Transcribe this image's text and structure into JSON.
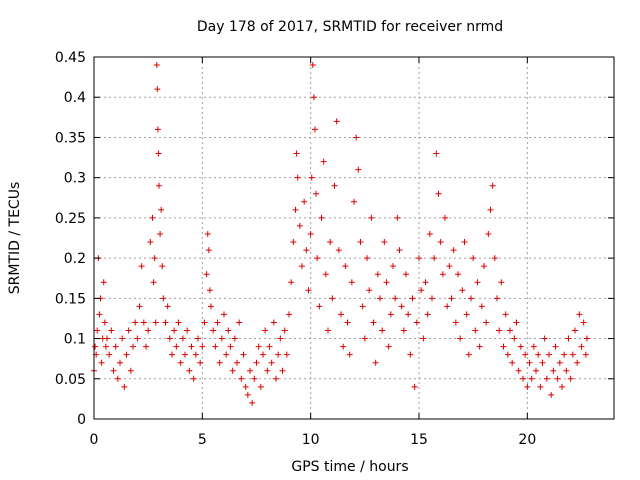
{
  "chart_data": {
    "type": "scatter",
    "title": "Day 178 of 2017, SRMTID for receiver nrmd",
    "xlabel": "GPS time / hours",
    "ylabel": "SRMTID / TECUs",
    "xlim": [
      0,
      24
    ],
    "ylim": [
      0,
      0.45
    ],
    "x_ticks": [
      0,
      5,
      10,
      15,
      20
    ],
    "y_ticks": [
      0,
      0.05,
      0.1,
      0.15,
      0.2,
      0.25,
      0.3,
      0.35,
      0.4,
      0.45
    ],
    "x_tick_labels": [
      "0",
      "5",
      "10",
      "15",
      "20"
    ],
    "y_tick_labels": [
      "0",
      "0.05",
      "0.1",
      "0.15",
      "0.2",
      "0.25",
      "0.3",
      "0.35",
      "0.4",
      "0.45"
    ],
    "grid": true,
    "series": [
      {
        "name": "SRMTID",
        "color": "#e00000",
        "marker": "plus",
        "points": [
          [
            0.0,
            0.06
          ],
          [
            0.05,
            0.09
          ],
          [
            0.1,
            0.08
          ],
          [
            0.15,
            0.11
          ],
          [
            0.2,
            0.2
          ],
          [
            0.25,
            0.13
          ],
          [
            0.3,
            0.15
          ],
          [
            0.35,
            0.07
          ],
          [
            0.4,
            0.1
          ],
          [
            0.45,
            0.17
          ],
          [
            0.5,
            0.12
          ],
          [
            0.55,
            0.09
          ],
          [
            0.6,
            0.1
          ],
          [
            0.7,
            0.08
          ],
          [
            0.8,
            0.11
          ],
          [
            0.9,
            0.06
          ],
          [
            1.0,
            0.09
          ],
          [
            1.1,
            0.05
          ],
          [
            1.2,
            0.07
          ],
          [
            1.3,
            0.1
          ],
          [
            1.4,
            0.04
          ],
          [
            1.5,
            0.08
          ],
          [
            1.6,
            0.11
          ],
          [
            1.7,
            0.06
          ],
          [
            1.8,
            0.09
          ],
          [
            1.9,
            0.12
          ],
          [
            2.0,
            0.1
          ],
          [
            2.1,
            0.14
          ],
          [
            2.2,
            0.19
          ],
          [
            2.3,
            0.12
          ],
          [
            2.4,
            0.09
          ],
          [
            2.5,
            0.11
          ],
          [
            2.6,
            0.22
          ],
          [
            2.7,
            0.25
          ],
          [
            2.75,
            0.17
          ],
          [
            2.8,
            0.2
          ],
          [
            2.85,
            0.12
          ],
          [
            2.9,
            0.44
          ],
          [
            2.92,
            0.41
          ],
          [
            2.95,
            0.36
          ],
          [
            2.98,
            0.33
          ],
          [
            3.0,
            0.29
          ],
          [
            3.05,
            0.23
          ],
          [
            3.1,
            0.26
          ],
          [
            3.15,
            0.19
          ],
          [
            3.2,
            0.15
          ],
          [
            3.3,
            0.12
          ],
          [
            3.4,
            0.14
          ],
          [
            3.5,
            0.1
          ],
          [
            3.6,
            0.08
          ],
          [
            3.7,
            0.11
          ],
          [
            3.8,
            0.09
          ],
          [
            3.9,
            0.12
          ],
          [
            4.0,
            0.07
          ],
          [
            4.1,
            0.1
          ],
          [
            4.2,
            0.08
          ],
          [
            4.3,
            0.11
          ],
          [
            4.4,
            0.06
          ],
          [
            4.5,
            0.09
          ],
          [
            4.6,
            0.05
          ],
          [
            4.7,
            0.08
          ],
          [
            4.8,
            0.1
          ],
          [
            4.9,
            0.07
          ],
          [
            5.0,
            0.09
          ],
          [
            5.1,
            0.12
          ],
          [
            5.2,
            0.18
          ],
          [
            5.25,
            0.23
          ],
          [
            5.3,
            0.21
          ],
          [
            5.35,
            0.16
          ],
          [
            5.4,
            0.14
          ],
          [
            5.5,
            0.11
          ],
          [
            5.6,
            0.09
          ],
          [
            5.7,
            0.12
          ],
          [
            5.8,
            0.07
          ],
          [
            5.9,
            0.1
          ],
          [
            6.0,
            0.13
          ],
          [
            6.1,
            0.08
          ],
          [
            6.2,
            0.11
          ],
          [
            6.3,
            0.09
          ],
          [
            6.4,
            0.06
          ],
          [
            6.5,
            0.1
          ],
          [
            6.6,
            0.07
          ],
          [
            6.7,
            0.12
          ],
          [
            6.8,
            0.05
          ],
          [
            6.9,
            0.08
          ],
          [
            7.0,
            0.04
          ],
          [
            7.1,
            0.03
          ],
          [
            7.2,
            0.06
          ],
          [
            7.3,
            0.02
          ],
          [
            7.4,
            0.05
          ],
          [
            7.5,
            0.07
          ],
          [
            7.6,
            0.09
          ],
          [
            7.7,
            0.04
          ],
          [
            7.8,
            0.08
          ],
          [
            7.9,
            0.11
          ],
          [
            8.0,
            0.06
          ],
          [
            8.1,
            0.09
          ],
          [
            8.2,
            0.07
          ],
          [
            8.3,
            0.12
          ],
          [
            8.4,
            0.05
          ],
          [
            8.5,
            0.08
          ],
          [
            8.6,
            0.1
          ],
          [
            8.7,
            0.06
          ],
          [
            8.8,
            0.11
          ],
          [
            8.9,
            0.08
          ],
          [
            9.0,
            0.13
          ],
          [
            9.1,
            0.17
          ],
          [
            9.2,
            0.22
          ],
          [
            9.3,
            0.26
          ],
          [
            9.35,
            0.33
          ],
          [
            9.4,
            0.3
          ],
          [
            9.5,
            0.24
          ],
          [
            9.6,
            0.19
          ],
          [
            9.7,
            0.27
          ],
          [
            9.8,
            0.21
          ],
          [
            9.9,
            0.16
          ],
          [
            10.0,
            0.23
          ],
          [
            10.05,
            0.3
          ],
          [
            10.1,
            0.44
          ],
          [
            10.15,
            0.4
          ],
          [
            10.2,
            0.36
          ],
          [
            10.25,
            0.28
          ],
          [
            10.3,
            0.2
          ],
          [
            10.4,
            0.14
          ],
          [
            10.5,
            0.25
          ],
          [
            10.6,
            0.32
          ],
          [
            10.7,
            0.18
          ],
          [
            10.8,
            0.11
          ],
          [
            10.9,
            0.22
          ],
          [
            11.0,
            0.15
          ],
          [
            11.1,
            0.29
          ],
          [
            11.2,
            0.37
          ],
          [
            11.3,
            0.21
          ],
          [
            11.4,
            0.13
          ],
          [
            11.5,
            0.09
          ],
          [
            11.6,
            0.19
          ],
          [
            11.7,
            0.12
          ],
          [
            11.8,
            0.08
          ],
          [
            11.9,
            0.17
          ],
          [
            12.0,
            0.27
          ],
          [
            12.1,
            0.35
          ],
          [
            12.2,
            0.31
          ],
          [
            12.3,
            0.22
          ],
          [
            12.4,
            0.14
          ],
          [
            12.5,
            0.1
          ],
          [
            12.6,
            0.2
          ],
          [
            12.7,
            0.16
          ],
          [
            12.8,
            0.25
          ],
          [
            12.9,
            0.12
          ],
          [
            13.0,
            0.07
          ],
          [
            13.1,
            0.18
          ],
          [
            13.2,
            0.15
          ],
          [
            13.3,
            0.11
          ],
          [
            13.4,
            0.22
          ],
          [
            13.5,
            0.17
          ],
          [
            13.6,
            0.09
          ],
          [
            13.7,
            0.13
          ],
          [
            13.8,
            0.19
          ],
          [
            13.9,
            0.15
          ],
          [
            14.0,
            0.25
          ],
          [
            14.1,
            0.21
          ],
          [
            14.2,
            0.14
          ],
          [
            14.3,
            0.11
          ],
          [
            14.4,
            0.18
          ],
          [
            14.5,
            0.13
          ],
          [
            14.6,
            0.08
          ],
          [
            14.7,
            0.15
          ],
          [
            14.8,
            0.04
          ],
          [
            14.9,
            0.12
          ],
          [
            15.0,
            0.2
          ],
          [
            15.1,
            0.16
          ],
          [
            15.2,
            0.1
          ],
          [
            15.3,
            0.17
          ],
          [
            15.4,
            0.13
          ],
          [
            15.5,
            0.23
          ],
          [
            15.6,
            0.15
          ],
          [
            15.7,
            0.2
          ],
          [
            15.8,
            0.33
          ],
          [
            15.9,
            0.28
          ],
          [
            16.0,
            0.22
          ],
          [
            16.1,
            0.18
          ],
          [
            16.2,
            0.25
          ],
          [
            16.3,
            0.14
          ],
          [
            16.4,
            0.19
          ],
          [
            16.5,
            0.15
          ],
          [
            16.6,
            0.21
          ],
          [
            16.7,
            0.12
          ],
          [
            16.8,
            0.18
          ],
          [
            16.9,
            0.1
          ],
          [
            17.0,
            0.16
          ],
          [
            17.1,
            0.22
          ],
          [
            17.2,
            0.13
          ],
          [
            17.3,
            0.08
          ],
          [
            17.4,
            0.15
          ],
          [
            17.5,
            0.2
          ],
          [
            17.6,
            0.11
          ],
          [
            17.7,
            0.17
          ],
          [
            17.8,
            0.09
          ],
          [
            17.9,
            0.14
          ],
          [
            18.0,
            0.19
          ],
          [
            18.1,
            0.12
          ],
          [
            18.2,
            0.23
          ],
          [
            18.3,
            0.26
          ],
          [
            18.4,
            0.29
          ],
          [
            18.5,
            0.2
          ],
          [
            18.6,
            0.15
          ],
          [
            18.7,
            0.11
          ],
          [
            18.8,
            0.17
          ],
          [
            18.9,
            0.09
          ],
          [
            19.0,
            0.13
          ],
          [
            19.1,
            0.08
          ],
          [
            19.2,
            0.11
          ],
          [
            19.3,
            0.07
          ],
          [
            19.4,
            0.1
          ],
          [
            19.5,
            0.12
          ],
          [
            19.6,
            0.06
          ],
          [
            19.7,
            0.09
          ],
          [
            19.8,
            0.05
          ],
          [
            19.9,
            0.08
          ],
          [
            20.0,
            0.04
          ],
          [
            20.1,
            0.07
          ],
          [
            20.2,
            0.05
          ],
          [
            20.3,
            0.09
          ],
          [
            20.4,
            0.06
          ],
          [
            20.5,
            0.08
          ],
          [
            20.6,
            0.04
          ],
          [
            20.7,
            0.07
          ],
          [
            20.8,
            0.1
          ],
          [
            20.9,
            0.05
          ],
          [
            21.0,
            0.08
          ],
          [
            21.1,
            0.03
          ],
          [
            21.2,
            0.06
          ],
          [
            21.3,
            0.09
          ],
          [
            21.4,
            0.05
          ],
          [
            21.5,
            0.07
          ],
          [
            21.6,
            0.04
          ],
          [
            21.7,
            0.08
          ],
          [
            21.8,
            0.06
          ],
          [
            21.9,
            0.1
          ],
          [
            22.0,
            0.05
          ],
          [
            22.1,
            0.08
          ],
          [
            22.2,
            0.11
          ],
          [
            22.3,
            0.07
          ],
          [
            22.4,
            0.13
          ],
          [
            22.5,
            0.09
          ],
          [
            22.6,
            0.12
          ],
          [
            22.7,
            0.08
          ],
          [
            22.75,
            0.1
          ]
        ]
      }
    ]
  }
}
